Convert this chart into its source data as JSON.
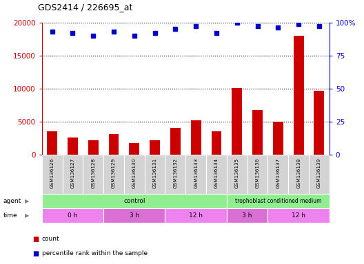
{
  "title": "GDS2414 / 226695_at",
  "samples": [
    "GSM136126",
    "GSM136127",
    "GSM136128",
    "GSM136129",
    "GSM136130",
    "GSM136131",
    "GSM136132",
    "GSM136133",
    "GSM136134",
    "GSM136135",
    "GSM136136",
    "GSM136137",
    "GSM136138",
    "GSM136139"
  ],
  "counts": [
    3500,
    2600,
    2100,
    3100,
    1700,
    2200,
    4000,
    5200,
    3500,
    10100,
    6700,
    5000,
    18000,
    9700
  ],
  "percentile_ranks": [
    93,
    92,
    90,
    93,
    90,
    92,
    95,
    97,
    92,
    100,
    97,
    96,
    99,
    97
  ],
  "bar_color": "#cc0000",
  "dot_color": "#0000cc",
  "ylim_left": [
    0,
    20000
  ],
  "ylim_right": [
    0,
    100
  ],
  "yticks_left": [
    0,
    5000,
    10000,
    15000,
    20000
  ],
  "yticks_right": [
    0,
    25,
    50,
    75,
    100
  ],
  "ytick_labels_right": [
    "0",
    "25",
    "50",
    "75",
    "100%"
  ],
  "legend_count_color": "#cc0000",
  "legend_dot_color": "#0000cc",
  "tick_label_color_left": "#cc0000",
  "tick_label_color_right": "#0000cc",
  "background_color": "#ffffff",
  "grid_color": "black",
  "xticklabel_bg": "#d3d3d3",
  "agent_control_color": "#90ee90",
  "time_color_light": "#ee82ee",
  "time_color_dark": "#da70d6"
}
